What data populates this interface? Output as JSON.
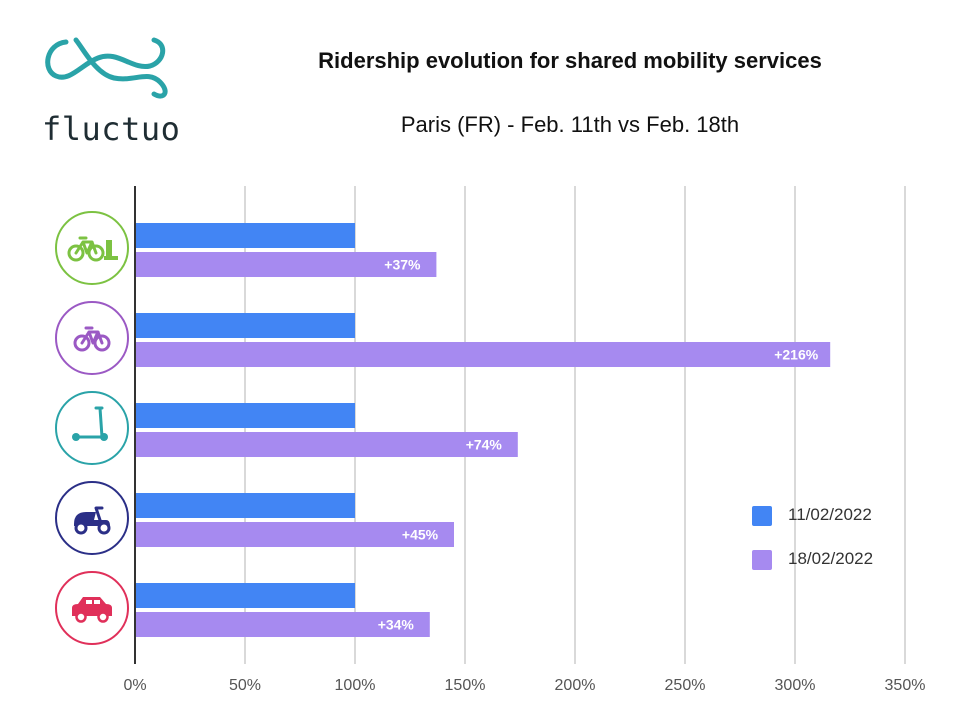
{
  "header": {
    "logo_text": "fluctuo",
    "title": "Ridership evolution for shared mobility services",
    "subtitle": "Paris (FR) - Feb. 11th vs Feb. 18th"
  },
  "colors": {
    "series_1": "#4285f4",
    "series_2": "#a68af0",
    "brand": "#2aa3a8"
  },
  "chart_data": {
    "type": "bar",
    "orientation": "horizontal",
    "categories": [
      "dock-based bike",
      "free-floating bike",
      "e-scooter",
      "moped",
      "car"
    ],
    "category_icons": [
      {
        "name": "docked-bike-icon",
        "color": "#7cc242"
      },
      {
        "name": "bike-icon",
        "color": "#9b59c4"
      },
      {
        "name": "scooter-icon",
        "color": "#2aa3a8"
      },
      {
        "name": "moped-icon",
        "color": "#2b2f87"
      },
      {
        "name": "car-icon",
        "color": "#e0305a"
      }
    ],
    "series": [
      {
        "name": "11/02/2022",
        "values": [
          100,
          100,
          100,
          100,
          100
        ]
      },
      {
        "name": "18/02/2022",
        "values": [
          137,
          316,
          174,
          145,
          134
        ],
        "labels": [
          "+37%",
          "+216%",
          "+74%",
          "+45%",
          "+34%"
        ]
      }
    ],
    "x_ticks": [
      "0%",
      "50%",
      "100%",
      "150%",
      "200%",
      "250%",
      "300%",
      "350%"
    ],
    "x_tick_values": [
      0,
      50,
      100,
      150,
      200,
      250,
      300,
      350
    ],
    "xlim": [
      0,
      350
    ],
    "grid": "vertical",
    "legend_position": "right"
  }
}
